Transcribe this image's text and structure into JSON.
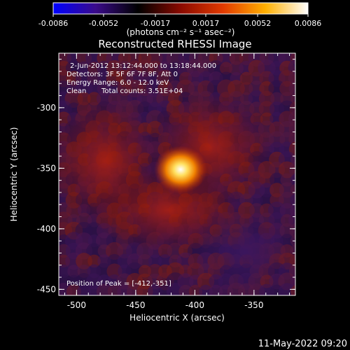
{
  "chart_data": {
    "type": "heatmap",
    "title": "Reconstructed RHESSI Image",
    "xlabel": "Heliocentric X (arcsec)",
    "ylabel": "Heliocentric Y (arcsec)",
    "xlim": [
      -515,
      -315
    ],
    "ylim": [
      -455,
      -255
    ],
    "x_ticks": [
      "-500",
      "-450",
      "-400",
      "-350"
    ],
    "x_tick_values": [
      -500,
      -450,
      -400,
      -350
    ],
    "y_ticks": [
      "-300",
      "-350",
      "-400",
      "-450"
    ],
    "y_tick_values": [
      -300,
      -350,
      -400,
      -450
    ],
    "colorbar": {
      "min": -0.0086,
      "max": 0.0086,
      "ticks": [
        "-0.0086",
        "-0.0052",
        "-0.0017",
        "0.0017",
        "0.0052",
        "0.0086"
      ],
      "units_label": "(photons cm⁻² s⁻¹ asec⁻²)",
      "colors": [
        "#0000ff",
        "#3a0b8a",
        "#000000",
        "#8a0a00",
        "#e23a00",
        "#ffb000",
        "#ffffff"
      ]
    },
    "peak": {
      "x": -412,
      "y": -351,
      "value": 0.0086
    },
    "annotations": {
      "time_range": "2-Jun-2012 13:12:44.000 to 13:18:44.000",
      "detectors": "Detectors: 3F 5F 6F 7F 8F, Att 0",
      "energy_range": "Energy Range: 6.0 - 12.0 keV",
      "algorithm": "Clean",
      "total_counts": "Total counts: 3.51E+04",
      "peak_position": "Position of Peak = [-412,-351]"
    }
  },
  "footer": {
    "timestamp": "11-May-2022 09:20"
  }
}
